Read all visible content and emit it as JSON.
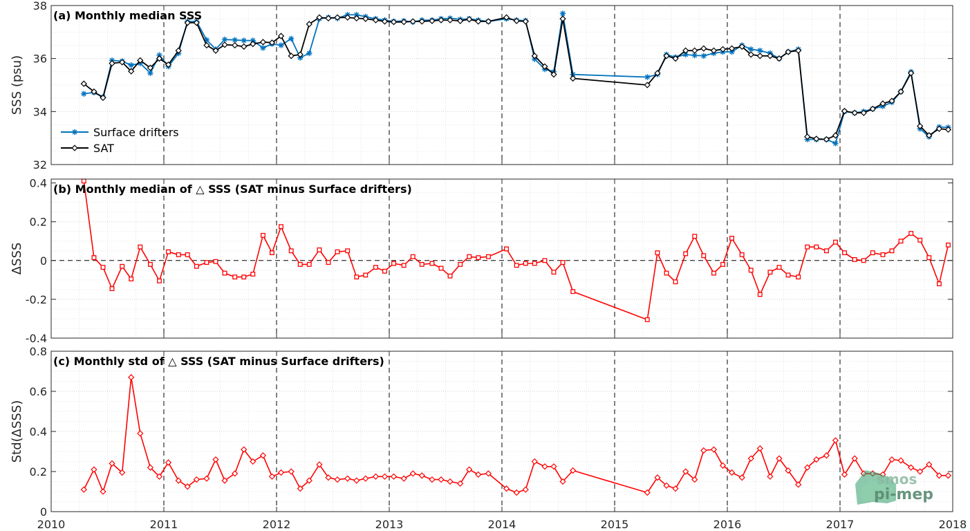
{
  "x_axis": {
    "range": [
      2010,
      2018
    ],
    "ticks": [
      "2010",
      "2011",
      "2012",
      "2013",
      "2014",
      "2015",
      "2016",
      "2017",
      "2018"
    ]
  },
  "logo": {
    "line1": "smos",
    "line2": "pi-mep"
  },
  "colors": {
    "drifters": "#0072BD",
    "sat": "#000000",
    "delta": "#FF0000",
    "grid": "#d9d9d9"
  },
  "chart_data": [
    {
      "type": "line",
      "title": "(a) Monthly median SSS",
      "ylabel": "SSS (psu)",
      "ylim": [
        32,
        38
      ],
      "yticks": [
        "32",
        "34",
        "36",
        "38"
      ],
      "legend": {
        "placement": "lower-left",
        "entries": [
          "Surface drifters",
          "SAT"
        ]
      },
      "series": [
        {
          "name": "Surface drifters",
          "marker": "asterisk",
          "x": [
            2010.29,
            2010.38,
            2010.46,
            2010.54,
            2010.63,
            2010.71,
            2010.79,
            2010.88,
            2010.96,
            2011.04,
            2011.13,
            2011.21,
            2011.29,
            2011.38,
            2011.46,
            2011.54,
            2011.63,
            2011.71,
            2011.79,
            2011.88,
            2011.96,
            2012.04,
            2012.13,
            2012.21,
            2012.29,
            2012.38,
            2012.46,
            2012.54,
            2012.63,
            2012.71,
            2012.79,
            2012.88,
            2012.96,
            2013.04,
            2013.13,
            2013.21,
            2013.29,
            2013.38,
            2013.46,
            2013.54,
            2013.63,
            2013.71,
            2013.79,
            2013.88,
            2014.04,
            2014.13,
            2014.21,
            2014.29,
            2014.38,
            2014.46,
            2014.54,
            2014.63,
            2015.29,
            2015.38,
            2015.46,
            2015.54,
            2015.63,
            2015.71,
            2015.79,
            2015.88,
            2015.96,
            2016.04,
            2016.13,
            2016.21,
            2016.29,
            2016.38,
            2016.46,
            2016.54,
            2016.63,
            2016.71,
            2016.79,
            2016.88,
            2016.96,
            2017.04,
            2017.13,
            2017.21,
            2017.29,
            2017.38,
            2017.46,
            2017.54,
            2017.63,
            2017.71,
            2017.79,
            2017.88,
            2017.96
          ],
          "values": [
            34.67,
            34.72,
            34.55,
            35.93,
            35.9,
            35.75,
            35.82,
            35.45,
            36.13,
            35.7,
            36.2,
            37.4,
            37.4,
            36.7,
            36.35,
            36.72,
            36.7,
            36.68,
            36.68,
            36.4,
            36.55,
            36.5,
            36.75,
            36.03,
            36.2,
            37.5,
            37.55,
            37.52,
            37.65,
            37.65,
            37.58,
            37.5,
            37.45,
            37.4,
            37.42,
            37.38,
            37.45,
            37.45,
            37.5,
            37.52,
            37.48,
            37.5,
            37.45,
            37.4,
            37.5,
            37.45,
            37.43,
            35.98,
            35.6,
            35.5,
            37.7,
            35.4,
            35.3,
            35.4,
            36.15,
            36.05,
            36.15,
            36.12,
            36.1,
            36.2,
            36.25,
            36.25,
            36.5,
            36.35,
            36.3,
            36.2,
            36.0,
            36.25,
            36.35,
            32.95,
            32.95,
            32.95,
            32.8,
            34.0,
            33.95,
            34.0,
            34.1,
            34.2,
            34.35,
            34.75,
            35.5,
            33.35,
            33.05,
            33.42,
            33.4
          ]
        },
        {
          "name": "SAT",
          "marker": "diamond",
          "x": [
            2010.29,
            2010.38,
            2010.46,
            2010.54,
            2010.63,
            2010.71,
            2010.79,
            2010.88,
            2010.96,
            2011.04,
            2011.13,
            2011.21,
            2011.29,
            2011.38,
            2011.46,
            2011.54,
            2011.63,
            2011.71,
            2011.79,
            2011.88,
            2011.96,
            2012.04,
            2012.13,
            2012.21,
            2012.29,
            2012.38,
            2012.46,
            2012.54,
            2012.63,
            2012.71,
            2012.79,
            2012.88,
            2012.96,
            2013.04,
            2013.13,
            2013.21,
            2013.29,
            2013.38,
            2013.46,
            2013.54,
            2013.63,
            2013.71,
            2013.79,
            2013.88,
            2014.04,
            2014.13,
            2014.21,
            2014.29,
            2014.38,
            2014.46,
            2014.54,
            2014.63,
            2015.29,
            2015.38,
            2015.46,
            2015.54,
            2015.63,
            2015.71,
            2015.79,
            2015.88,
            2015.96,
            2016.04,
            2016.13,
            2016.21,
            2016.29,
            2016.38,
            2016.46,
            2016.54,
            2016.63,
            2016.71,
            2016.79,
            2016.88,
            2016.96,
            2017.04,
            2017.13,
            2017.21,
            2017.29,
            2017.38,
            2017.46,
            2017.54,
            2017.63,
            2017.71,
            2017.79,
            2017.88,
            2017.96
          ],
          "values": [
            35.05,
            34.75,
            34.52,
            35.82,
            35.86,
            35.52,
            35.93,
            35.65,
            36.0,
            35.77,
            36.3,
            37.35,
            37.35,
            36.5,
            36.3,
            36.52,
            36.5,
            36.45,
            36.55,
            36.62,
            36.6,
            36.85,
            36.1,
            36.15,
            37.3,
            37.55,
            37.52,
            37.55,
            37.55,
            37.52,
            37.5,
            37.45,
            37.4,
            37.38,
            37.38,
            37.4,
            37.4,
            37.42,
            37.45,
            37.45,
            37.42,
            37.48,
            37.4,
            37.4,
            37.55,
            37.42,
            37.4,
            36.1,
            35.7,
            35.4,
            37.5,
            35.25,
            35.0,
            35.45,
            36.1,
            36.0,
            36.3,
            36.3,
            36.38,
            36.3,
            36.35,
            36.38,
            36.45,
            36.15,
            36.1,
            36.1,
            36.0,
            36.25,
            36.3,
            33.05,
            32.97,
            32.95,
            33.1,
            34.02,
            33.95,
            33.95,
            34.1,
            34.3,
            34.4,
            34.75,
            35.45,
            33.45,
            33.1,
            33.35,
            33.32
          ]
        }
      ]
    },
    {
      "type": "line",
      "title": "(b) Monthly median of △ SSS (SAT minus Surface drifters)",
      "ylabel": "ΔSSS",
      "ylim": [
        -0.4,
        0.42
      ],
      "yticks": [
        "-0.4",
        "-0.2",
        "0",
        "0.2",
        "0.4"
      ],
      "zero_line": true,
      "series": [
        {
          "marker": "square",
          "x": [
            2010.29,
            2010.38,
            2010.46,
            2010.54,
            2010.63,
            2010.71,
            2010.79,
            2010.88,
            2010.96,
            2011.04,
            2011.13,
            2011.21,
            2011.29,
            2011.38,
            2011.46,
            2011.54,
            2011.63,
            2011.71,
            2011.79,
            2011.88,
            2011.96,
            2012.04,
            2012.13,
            2012.21,
            2012.29,
            2012.38,
            2012.46,
            2012.54,
            2012.63,
            2012.71,
            2012.79,
            2012.88,
            2012.96,
            2013.04,
            2013.13,
            2013.21,
            2013.29,
            2013.38,
            2013.46,
            2013.54,
            2013.63,
            2013.71,
            2013.79,
            2013.88,
            2014.04,
            2014.13,
            2014.21,
            2014.29,
            2014.38,
            2014.46,
            2014.54,
            2014.63,
            2015.29,
            2015.38,
            2015.46,
            2015.54,
            2015.63,
            2015.71,
            2015.79,
            2015.88,
            2015.96,
            2016.04,
            2016.13,
            2016.21,
            2016.29,
            2016.38,
            2016.46,
            2016.54,
            2016.63,
            2016.71,
            2016.79,
            2016.88,
            2016.96,
            2017.04,
            2017.13,
            2017.21,
            2017.29,
            2017.38,
            2017.46,
            2017.54,
            2017.63,
            2017.71,
            2017.79,
            2017.88,
            2017.96
          ],
          "values": [
            0.41,
            0.015,
            -0.035,
            -0.145,
            -0.03,
            -0.095,
            0.07,
            -0.02,
            -0.105,
            0.045,
            0.03,
            0.03,
            -0.03,
            -0.01,
            -0.005,
            -0.065,
            -0.085,
            -0.085,
            -0.07,
            0.13,
            0.04,
            0.175,
            0.05,
            -0.02,
            -0.02,
            0.055,
            -0.01,
            0.045,
            0.05,
            -0.085,
            -0.075,
            -0.035,
            -0.055,
            -0.015,
            -0.025,
            0.02,
            -0.02,
            -0.015,
            -0.04,
            -0.08,
            -0.02,
            0.02,
            0.015,
            0.02,
            0.06,
            -0.025,
            -0.015,
            -0.015,
            0.0,
            -0.06,
            -0.01,
            -0.16,
            -0.305,
            0.04,
            -0.065,
            -0.11,
            0.035,
            0.125,
            0.025,
            -0.065,
            -0.02,
            0.115,
            0.03,
            -0.05,
            -0.175,
            -0.06,
            -0.035,
            -0.075,
            -0.085,
            0.07,
            0.07,
            0.05,
            0.095,
            0.04,
            0.005,
            0.0,
            0.04,
            0.03,
            0.05,
            0.1,
            0.14,
            0.105,
            0.015,
            -0.12,
            0.08
          ]
        }
      ]
    },
    {
      "type": "line",
      "title": "(c) Monthly std of △ SSS (SAT minus Surface drifters)",
      "ylabel": "Std(ΔSSS)",
      "ylim": [
        0,
        0.8
      ],
      "yticks": [
        "0",
        "0.2",
        "0.4",
        "0.6",
        "0.8"
      ],
      "series": [
        {
          "marker": "diamond",
          "x": [
            2010.29,
            2010.38,
            2010.46,
            2010.54,
            2010.63,
            2010.71,
            2010.79,
            2010.88,
            2010.96,
            2011.04,
            2011.13,
            2011.21,
            2011.29,
            2011.38,
            2011.46,
            2011.54,
            2011.63,
            2011.71,
            2011.79,
            2011.88,
            2011.96,
            2012.04,
            2012.13,
            2012.21,
            2012.29,
            2012.38,
            2012.46,
            2012.54,
            2012.63,
            2012.71,
            2012.79,
            2012.88,
            2012.96,
            2013.04,
            2013.13,
            2013.21,
            2013.29,
            2013.38,
            2013.46,
            2013.54,
            2013.63,
            2013.71,
            2013.79,
            2013.88,
            2014.04,
            2014.13,
            2014.21,
            2014.29,
            2014.38,
            2014.46,
            2014.54,
            2014.63,
            2015.29,
            2015.38,
            2015.46,
            2015.54,
            2015.63,
            2015.71,
            2015.79,
            2015.88,
            2015.96,
            2016.04,
            2016.13,
            2016.21,
            2016.29,
            2016.38,
            2016.46,
            2016.54,
            2016.63,
            2016.71,
            2016.79,
            2016.88,
            2016.96,
            2017.04,
            2017.13,
            2017.21,
            2017.29,
            2017.38,
            2017.46,
            2017.54,
            2017.63,
            2017.71,
            2017.79,
            2017.88,
            2017.96
          ],
          "values": [
            0.11,
            0.21,
            0.1,
            0.24,
            0.195,
            0.67,
            0.39,
            0.22,
            0.175,
            0.245,
            0.155,
            0.125,
            0.16,
            0.165,
            0.26,
            0.155,
            0.19,
            0.31,
            0.25,
            0.28,
            0.175,
            0.195,
            0.2,
            0.115,
            0.155,
            0.235,
            0.17,
            0.16,
            0.165,
            0.155,
            0.165,
            0.175,
            0.175,
            0.175,
            0.165,
            0.19,
            0.18,
            0.16,
            0.16,
            0.15,
            0.14,
            0.21,
            0.185,
            0.19,
            0.115,
            0.095,
            0.11,
            0.25,
            0.225,
            0.225,
            0.15,
            0.205,
            0.095,
            0.17,
            0.13,
            0.115,
            0.2,
            0.16,
            0.305,
            0.31,
            0.23,
            0.195,
            0.17,
            0.265,
            0.315,
            0.175,
            0.265,
            0.205,
            0.135,
            0.22,
            0.26,
            0.28,
            0.355,
            0.185,
            0.265,
            0.19,
            0.19,
            0.185,
            0.26,
            0.255,
            0.22,
            0.2,
            0.235,
            0.18,
            0.18
          ]
        }
      ]
    }
  ]
}
